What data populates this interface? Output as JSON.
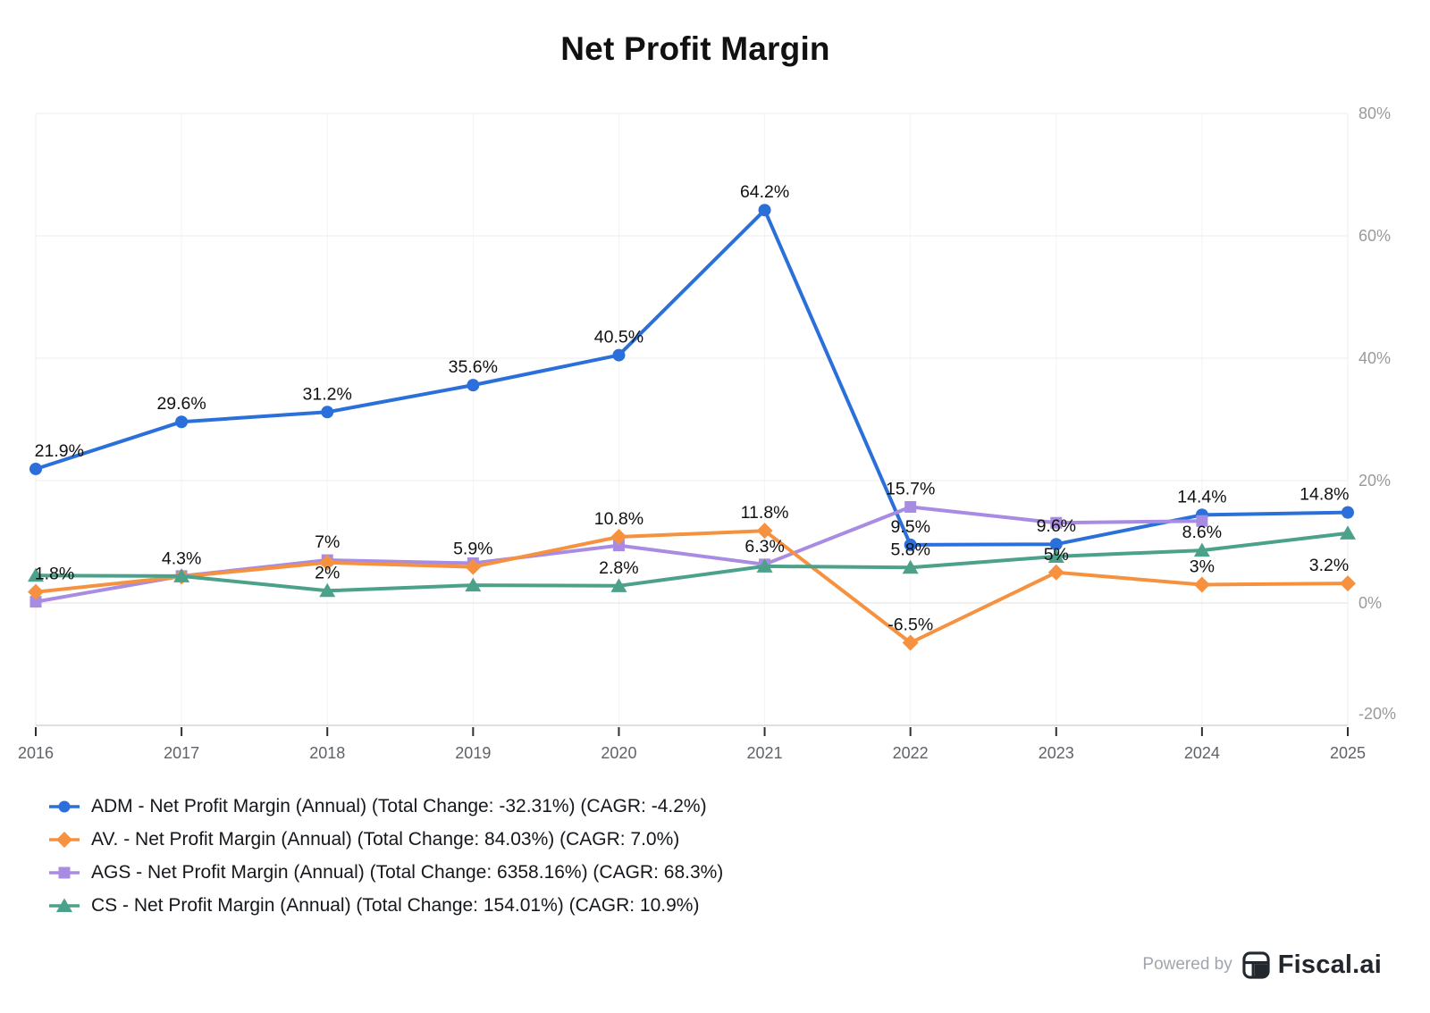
{
  "title": "Net Profit Margin",
  "x_axis": {
    "labels": [
      "2016",
      "2017",
      "2018",
      "2019",
      "2020",
      "2021",
      "2022",
      "2023",
      "2024",
      "2025"
    ]
  },
  "y_axis": {
    "tick_labels": [
      "80%",
      "60%",
      "40%",
      "20%",
      "0%",
      "-20%"
    ],
    "tick_values": [
      80,
      60,
      40,
      20,
      0,
      -20
    ]
  },
  "chart_data": {
    "type": "line",
    "x": [
      2016,
      2017,
      2018,
      2019,
      2020,
      2021,
      2022,
      2023,
      2024,
      2025
    ],
    "ylim": [
      -20,
      80
    ],
    "grid": true,
    "legend_position": "bottom-left",
    "series": [
      {
        "name": "ADM",
        "legend_label": "ADM - Net Profit Margin (Annual) (Total Change: -32.31%) (CAGR: -4.2%)",
        "color": "#2b70da",
        "marker": "circle",
        "values": [
          21.9,
          29.6,
          31.2,
          35.6,
          40.5,
          64.2,
          9.5,
          9.6,
          14.4,
          14.8
        ],
        "point_labels": [
          "21.9%",
          "29.6%",
          "31.2%",
          "35.6%",
          "40.5%",
          "64.2%",
          "9.5%",
          "9.6%",
          "14.4%",
          "14.8%"
        ]
      },
      {
        "name": "AV.",
        "legend_label": "AV. - Net Profit Margin (Annual) (Total Change: 84.03%) (CAGR: 7.0%)",
        "color": "#f6913f",
        "marker": "diamond",
        "values": [
          1.8,
          4.3,
          6.6,
          5.9,
          10.8,
          11.8,
          -6.5,
          5,
          3,
          3.2
        ],
        "point_labels": [
          "1.8%",
          "4.3%",
          null,
          "5.9%",
          "10.8%",
          "11.8%",
          "-6.5%",
          "5%",
          "3%",
          "3.2%"
        ]
      },
      {
        "name": "AGS",
        "legend_label": "AGS - Net Profit Margin (Annual) (Total Change: 6358.16%) (CAGR: 68.3%)",
        "color": "#a88be2",
        "marker": "square",
        "values": [
          0.2,
          4.4,
          7,
          6.5,
          9.4,
          6.3,
          15.7,
          13.1,
          13.4,
          null
        ],
        "point_labels": [
          null,
          null,
          "7%",
          null,
          null,
          "6.3%",
          "15.7%",
          null,
          null,
          null
        ]
      },
      {
        "name": "CS",
        "legend_label": "CS - Net Profit Margin (Annual) (Total Change: 154.01%) (CAGR: 10.9%)",
        "color": "#4ba189",
        "marker": "triangle",
        "values": [
          4.5,
          4.4,
          2,
          2.9,
          2.8,
          6,
          5.8,
          7.6,
          8.6,
          11.4
        ],
        "point_labels": [
          null,
          null,
          "2%",
          null,
          "2.8%",
          null,
          "5.8%",
          null,
          "8.6%",
          null
        ]
      }
    ]
  },
  "footer": {
    "powered_by": "Powered by",
    "brand": "Fiscal.ai"
  }
}
